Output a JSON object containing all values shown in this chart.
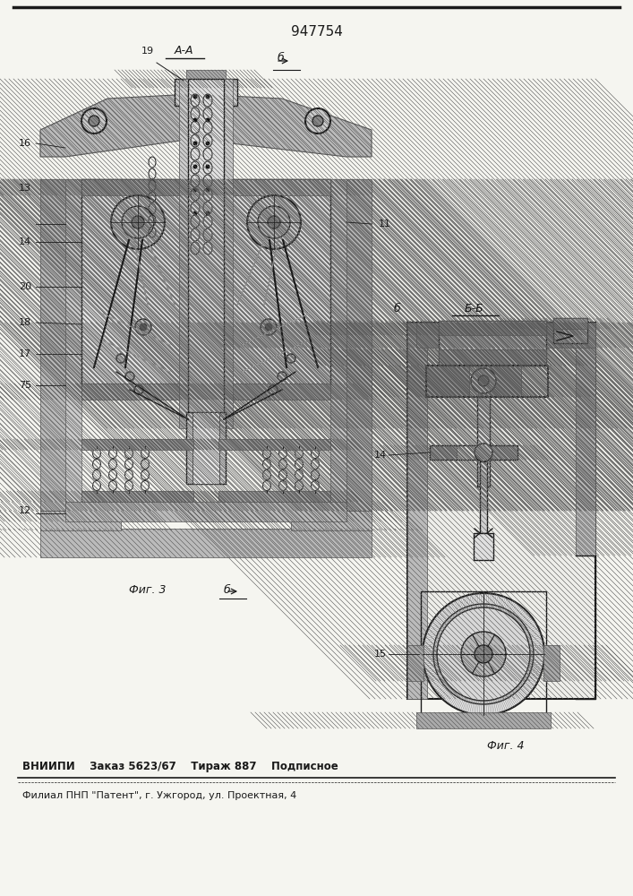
{
  "patent_number": "947754",
  "footer1": "ВНИИПИ    Заказ 5623/67    Тираж 887    Подписное",
  "footer2": "Филиал ПНП \"Патент\", г. Ужгород, ул. Проектная, 4",
  "fig3_label": "Фиг. 3",
  "fig4_label": "Фиг. 4",
  "bg": "#f5f5f0",
  "lc": "#1a1a1a",
  "hc": "#888888",
  "fc": "#d8d8d8"
}
